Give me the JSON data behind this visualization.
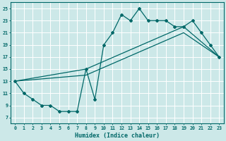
{
  "xlabel": "Humidex (Indice chaleur)",
  "bg_color": "#cce8e8",
  "grid_color": "#b0d8d8",
  "line_color": "#006868",
  "xlim": [
    -0.5,
    23.5
  ],
  "ylim": [
    6,
    26
  ],
  "xticks": [
    0,
    1,
    2,
    3,
    4,
    5,
    6,
    7,
    8,
    9,
    10,
    11,
    12,
    13,
    14,
    15,
    16,
    17,
    18,
    19,
    20,
    21,
    22,
    23
  ],
  "yticks": [
    7,
    9,
    11,
    13,
    15,
    17,
    19,
    21,
    23,
    25
  ],
  "curve1_x": [
    0,
    1,
    2,
    3,
    4,
    5,
    6,
    7,
    8,
    9,
    10,
    11,
    12,
    13,
    14,
    15,
    16,
    17,
    18,
    19,
    20,
    21,
    22,
    23
  ],
  "curve1_y": [
    13,
    11,
    10,
    9,
    9,
    8,
    8,
    8,
    15,
    10,
    19,
    21,
    24,
    23,
    25,
    23,
    23,
    23,
    22,
    22,
    23,
    21,
    19,
    17
  ],
  "line2_x": [
    0,
    8,
    19,
    23
  ],
  "line2_y": [
    13,
    15,
    22,
    17
  ],
  "line3_x": [
    0,
    8,
    19,
    23
  ],
  "line3_y": [
    13,
    14,
    21,
    17
  ]
}
